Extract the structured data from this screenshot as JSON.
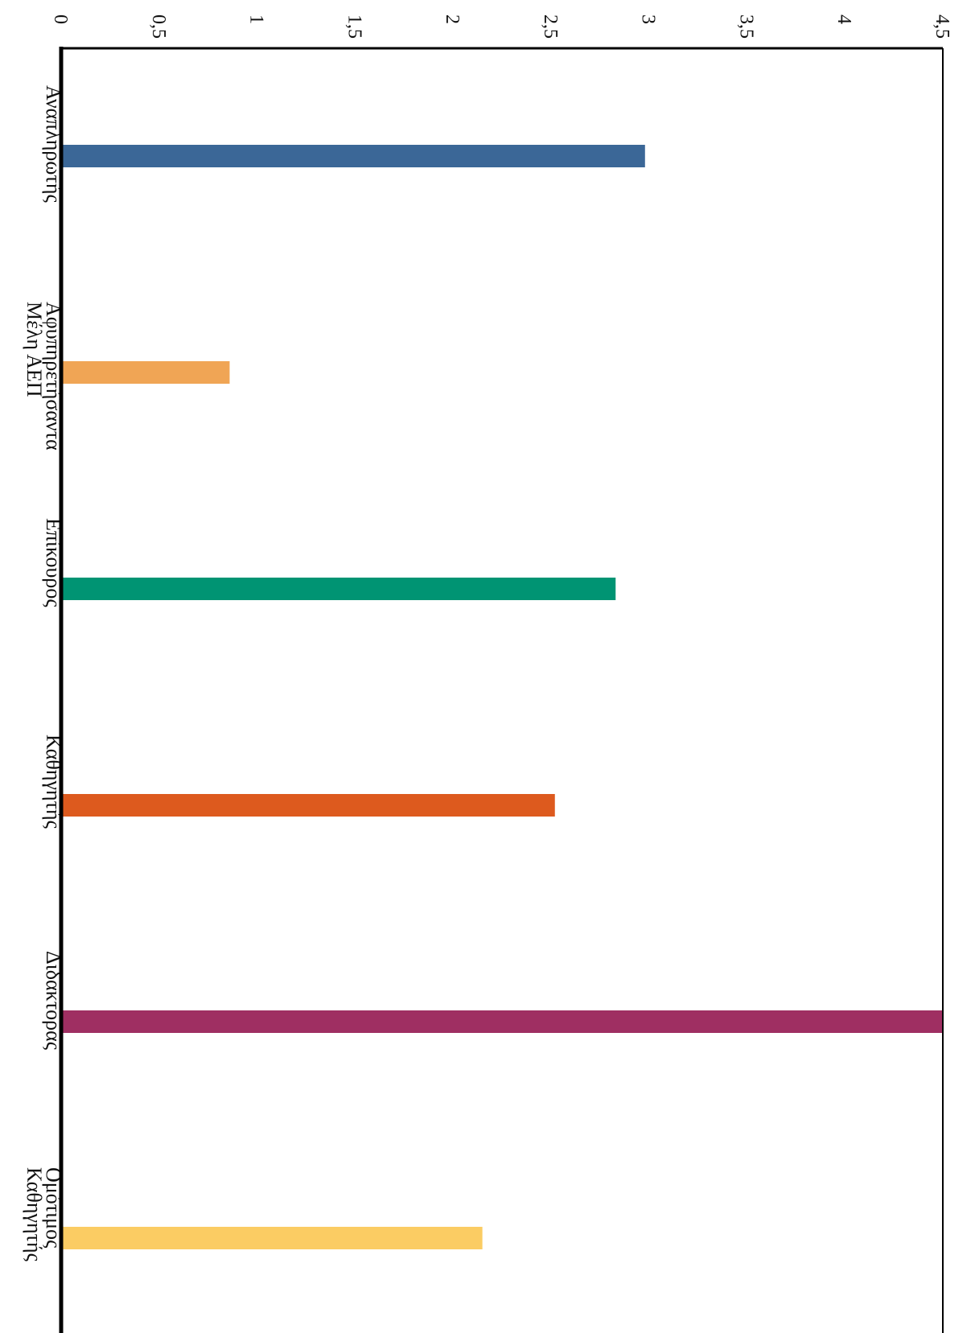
{
  "chart_data": {
    "type": "bar",
    "orientation": "horizontal",
    "rotated_view": true,
    "categories": [
      [
        "Αναπληρωτής"
      ],
      [
        "Αφυπηρετήσαντα",
        "Μέλη ΑΕΠ"
      ],
      [
        "Επίκουρος"
      ],
      [
        "Καθηγητής"
      ],
      [
        "Διδακτορας"
      ],
      [
        "Ομότιμος",
        "Καθηγητής"
      ]
    ],
    "values": [
      2.98,
      0.86,
      2.83,
      2.52,
      4.5,
      2.15
    ],
    "colors": [
      "#3b6797",
      "#f0a555",
      "#009473",
      "#dd5a1e",
      "#9f2f62",
      "#fbcc63"
    ],
    "xlim": [
      0,
      4.5
    ],
    "ticks": [
      0,
      0.5,
      1,
      1.5,
      2,
      2.5,
      3,
      3.5,
      4,
      4.5
    ],
    "tick_labels": [
      "0",
      "0,5",
      "1",
      "1,5",
      "2",
      "2,5",
      "3",
      "3,5",
      "4",
      "4,5"
    ],
    "grid": false,
    "legend": "none",
    "title": "",
    "xlabel": "",
    "ylabel": ""
  }
}
